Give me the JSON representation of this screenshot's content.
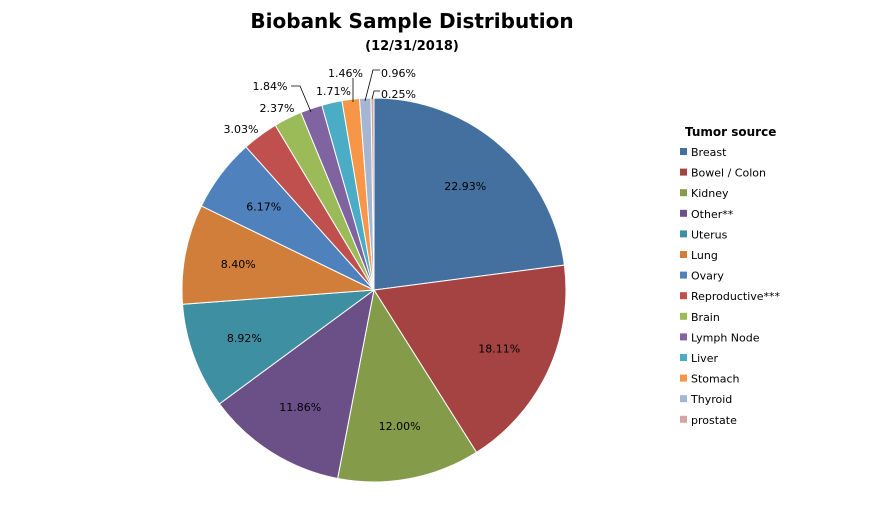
{
  "chart_data": {
    "type": "pie",
    "title": "Biobank Sample Distribution",
    "subtitle": "(12/31/2018)",
    "legend_title": "Tumor source",
    "legend_position": "right",
    "slices": [
      {
        "label": "Breast",
        "value": 22.93,
        "display": "22.93%",
        "color": "#4470a0"
      },
      {
        "label": "Bowel / Colon",
        "value": 18.11,
        "display": "18.11%",
        "color": "#a44342"
      },
      {
        "label": "Kidney",
        "value": 12.0,
        "display": "12.00%",
        "color": "#849c4a"
      },
      {
        "label": "Other**",
        "value": 11.86,
        "display": "11.86%",
        "color": "#6b5088"
      },
      {
        "label": "Uterus",
        "value": 8.92,
        "display": "8.92%",
        "color": "#3f8fa3"
      },
      {
        "label": "Lung",
        "value": 8.4,
        "display": "8.40%",
        "color": "#d07e3a"
      },
      {
        "label": "Ovary",
        "value": 6.17,
        "display": "6.17%",
        "color": "#4f81bd"
      },
      {
        "label": "Reproductive***",
        "value": 3.03,
        "display": "3.03%",
        "color": "#c0504d"
      },
      {
        "label": "Brain",
        "value": 2.37,
        "display": "2.37%",
        "color": "#9bbb59"
      },
      {
        "label": "Lymph Node",
        "value": 1.84,
        "display": "1.84%",
        "color": "#8064a2"
      },
      {
        "label": "Liver",
        "value": 1.71,
        "display": "1.71%",
        "color": "#4bacc6"
      },
      {
        "label": "Stomach",
        "value": 1.46,
        "display": "1.46%",
        "color": "#f79646"
      },
      {
        "label": "Thyroid",
        "value": 0.96,
        "display": "0.96%",
        "color": "#a5b6d2"
      },
      {
        "label": "prostate",
        "value": 0.25,
        "display": "0.25%",
        "color": "#d6a4a3"
      }
    ]
  }
}
